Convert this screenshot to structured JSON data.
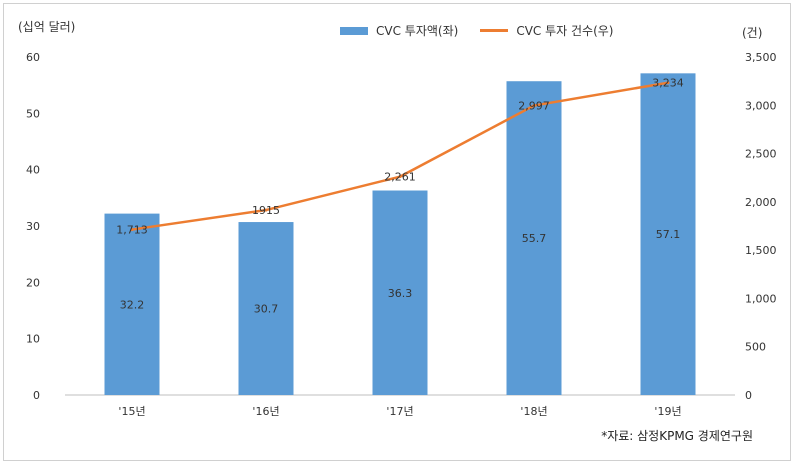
{
  "chart_data": {
    "type": "bar",
    "categories": [
      "'15년",
      "'16년",
      "'17년",
      "'18년",
      "'19년"
    ],
    "series": [
      {
        "name": "CVC 투자액(좌)",
        "type": "bar",
        "axis": "left",
        "values": [
          32.2,
          30.7,
          36.3,
          55.7,
          57.1
        ],
        "labels": [
          "32.2",
          "30.7",
          "36.3",
          "55.7",
          "57.1"
        ],
        "color": "#5b9bd5"
      },
      {
        "name": "CVC 투자 건수(우)",
        "type": "line",
        "axis": "right",
        "values": [
          1713,
          1915,
          2261,
          2997,
          3234
        ],
        "labels": [
          "1,713",
          "1915",
          "2,261",
          "2,997",
          "3,234"
        ],
        "color": "#ed7d31"
      }
    ],
    "left_axis": {
      "label": "(십억 달러)",
      "ylim": [
        0,
        60
      ],
      "ticks": [
        "0",
        "10",
        "20",
        "30",
        "40",
        "50",
        "60"
      ]
    },
    "right_axis": {
      "label": "(건)",
      "ylim": [
        0,
        3500
      ],
      "ticks": [
        "0",
        "500",
        "1,000",
        "1,500",
        "2,000",
        "2,500",
        "3,000",
        "3,500"
      ]
    },
    "legend_position": "top-center",
    "source": "*자료: 삼정KPMG 경제연구원"
  }
}
